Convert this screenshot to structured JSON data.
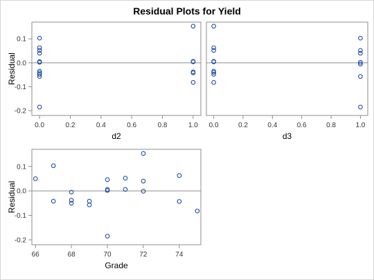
{
  "title": "Residual Plots for Yield",
  "colors": {
    "marker": "#1f4ea6",
    "frame": "#8c8c8c",
    "refline": "#8c8c8c",
    "background": "#ffffff"
  },
  "chart_data": [
    {
      "type": "scatter",
      "xlabel": "d2",
      "ylabel": "Residual",
      "xlim": [
        -0.05,
        1.05
      ],
      "ylim": [
        -0.22,
        0.17
      ],
      "xticks": [
        0.0,
        0.2,
        0.4,
        0.6,
        0.8,
        1.0
      ],
      "xtick_labels": [
        "0.0",
        "0.2",
        "0.4",
        "0.6",
        "0.8",
        "1.0"
      ],
      "yticks": [
        0.1,
        0.0,
        -0.1,
        -0.2
      ],
      "ytick_labels": [
        "0.1",
        "0.0",
        "-0.1",
        "-0.2"
      ],
      "reference_line_y": 0.0,
      "points": [
        {
          "x": 0,
          "y": 0.103
        },
        {
          "x": 0,
          "y": 0.063
        },
        {
          "x": 0,
          "y": 0.052
        },
        {
          "x": 0,
          "y": 0.04
        },
        {
          "x": 0,
          "y": 0.005
        },
        {
          "x": 0,
          "y": 0.002
        },
        {
          "x": 0,
          "y": -0.035
        },
        {
          "x": 0,
          "y": -0.042
        },
        {
          "x": 0,
          "y": -0.048
        },
        {
          "x": 0,
          "y": -0.057
        },
        {
          "x": 0,
          "y": -0.185
        },
        {
          "x": 1,
          "y": 0.153
        },
        {
          "x": 1,
          "y": 0.006
        },
        {
          "x": 1,
          "y": 0.004
        },
        {
          "x": 1,
          "y": -0.038
        },
        {
          "x": 1,
          "y": -0.042
        },
        {
          "x": 1,
          "y": -0.082
        }
      ]
    },
    {
      "type": "scatter",
      "xlabel": "d3",
      "ylabel": "",
      "xlim": [
        -0.05,
        1.05
      ],
      "ylim": [
        -0.22,
        0.17
      ],
      "xticks": [
        0.0,
        0.2,
        0.4,
        0.6,
        0.8,
        1.0
      ],
      "xtick_labels": [
        "0.0",
        "0.2",
        "0.4",
        "0.6",
        "0.8",
        "1.0"
      ],
      "yticks": [],
      "ytick_labels": [],
      "reference_line_y": 0.0,
      "points": [
        {
          "x": 0,
          "y": 0.153
        },
        {
          "x": 0,
          "y": 0.063
        },
        {
          "x": 0,
          "y": 0.052
        },
        {
          "x": 0,
          "y": 0.006
        },
        {
          "x": 0,
          "y": 0.004
        },
        {
          "x": 0,
          "y": -0.035
        },
        {
          "x": 0,
          "y": -0.04
        },
        {
          "x": 0,
          "y": -0.048
        },
        {
          "x": 0,
          "y": -0.082
        },
        {
          "x": 1,
          "y": 0.103
        },
        {
          "x": 1,
          "y": 0.052
        },
        {
          "x": 1,
          "y": 0.04
        },
        {
          "x": 1,
          "y": 0.002
        },
        {
          "x": 1,
          "y": -0.005
        },
        {
          "x": 1,
          "y": -0.057
        },
        {
          "x": 1,
          "y": -0.185
        }
      ]
    },
    {
      "type": "scatter",
      "xlabel": "Grade",
      "ylabel": "Residual",
      "xlim": [
        65.8,
        75.2
      ],
      "ylim": [
        -0.22,
        0.17
      ],
      "xticks": [
        66,
        68,
        70,
        72,
        74
      ],
      "xtick_labels": [
        "66",
        "68",
        "70",
        "72",
        "74"
      ],
      "yticks": [
        0.1,
        0.0,
        -0.1,
        -0.2
      ],
      "ytick_labels": [
        "0.1",
        "0.0",
        "-0.1",
        "-0.2"
      ],
      "reference_line_y": 0.0,
      "points": [
        {
          "x": 66,
          "y": 0.05
        },
        {
          "x": 67,
          "y": 0.103
        },
        {
          "x": 67,
          "y": -0.042
        },
        {
          "x": 68,
          "y": -0.005
        },
        {
          "x": 68,
          "y": -0.038
        },
        {
          "x": 68,
          "y": -0.05
        },
        {
          "x": 69,
          "y": -0.042
        },
        {
          "x": 69,
          "y": -0.057
        },
        {
          "x": 70,
          "y": 0.046
        },
        {
          "x": 70,
          "y": 0.006
        },
        {
          "x": 70,
          "y": 0.002
        },
        {
          "x": 70,
          "y": -0.185
        },
        {
          "x": 71,
          "y": 0.052
        },
        {
          "x": 71,
          "y": 0.006
        },
        {
          "x": 72,
          "y": 0.153
        },
        {
          "x": 72,
          "y": 0.04
        },
        {
          "x": 72,
          "y": -0.001
        },
        {
          "x": 74,
          "y": 0.063
        },
        {
          "x": 74,
          "y": -0.043
        },
        {
          "x": 75,
          "y": -0.082
        }
      ]
    }
  ]
}
